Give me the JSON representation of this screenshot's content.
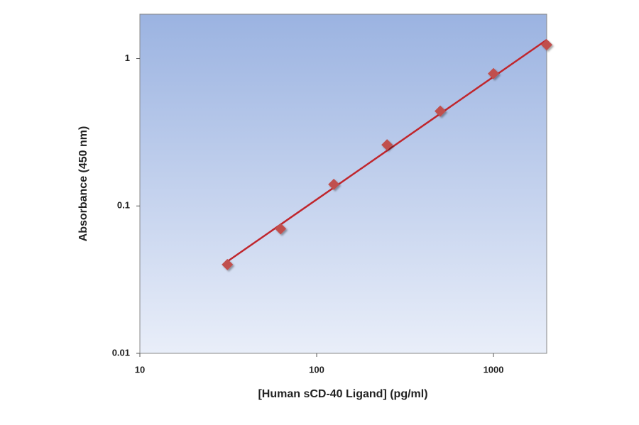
{
  "chart_data": {
    "type": "scatter",
    "xlabel": "[Human sCD-40 Ligand] (pg/ml)",
    "ylabel": "Absorbance (450 nm)",
    "xscale": "log",
    "yscale": "log",
    "xlim": [
      10,
      2000
    ],
    "ylim": [
      0.01,
      2
    ],
    "xticks": [
      10,
      100,
      1000
    ],
    "yticks": [
      0.01,
      0.1,
      1
    ],
    "series": [
      {
        "type": "scatter",
        "color": "#c0504d",
        "x": [
          31.25,
          62.5,
          125,
          250,
          500,
          1000,
          2000
        ],
        "values": [
          0.04,
          0.07,
          0.14,
          0.26,
          0.44,
          0.79,
          1.24
        ]
      },
      {
        "type": "line",
        "color": "#c0262d",
        "x": [
          31.25,
          2000
        ],
        "values": [
          0.042,
          1.34
        ]
      }
    ]
  }
}
